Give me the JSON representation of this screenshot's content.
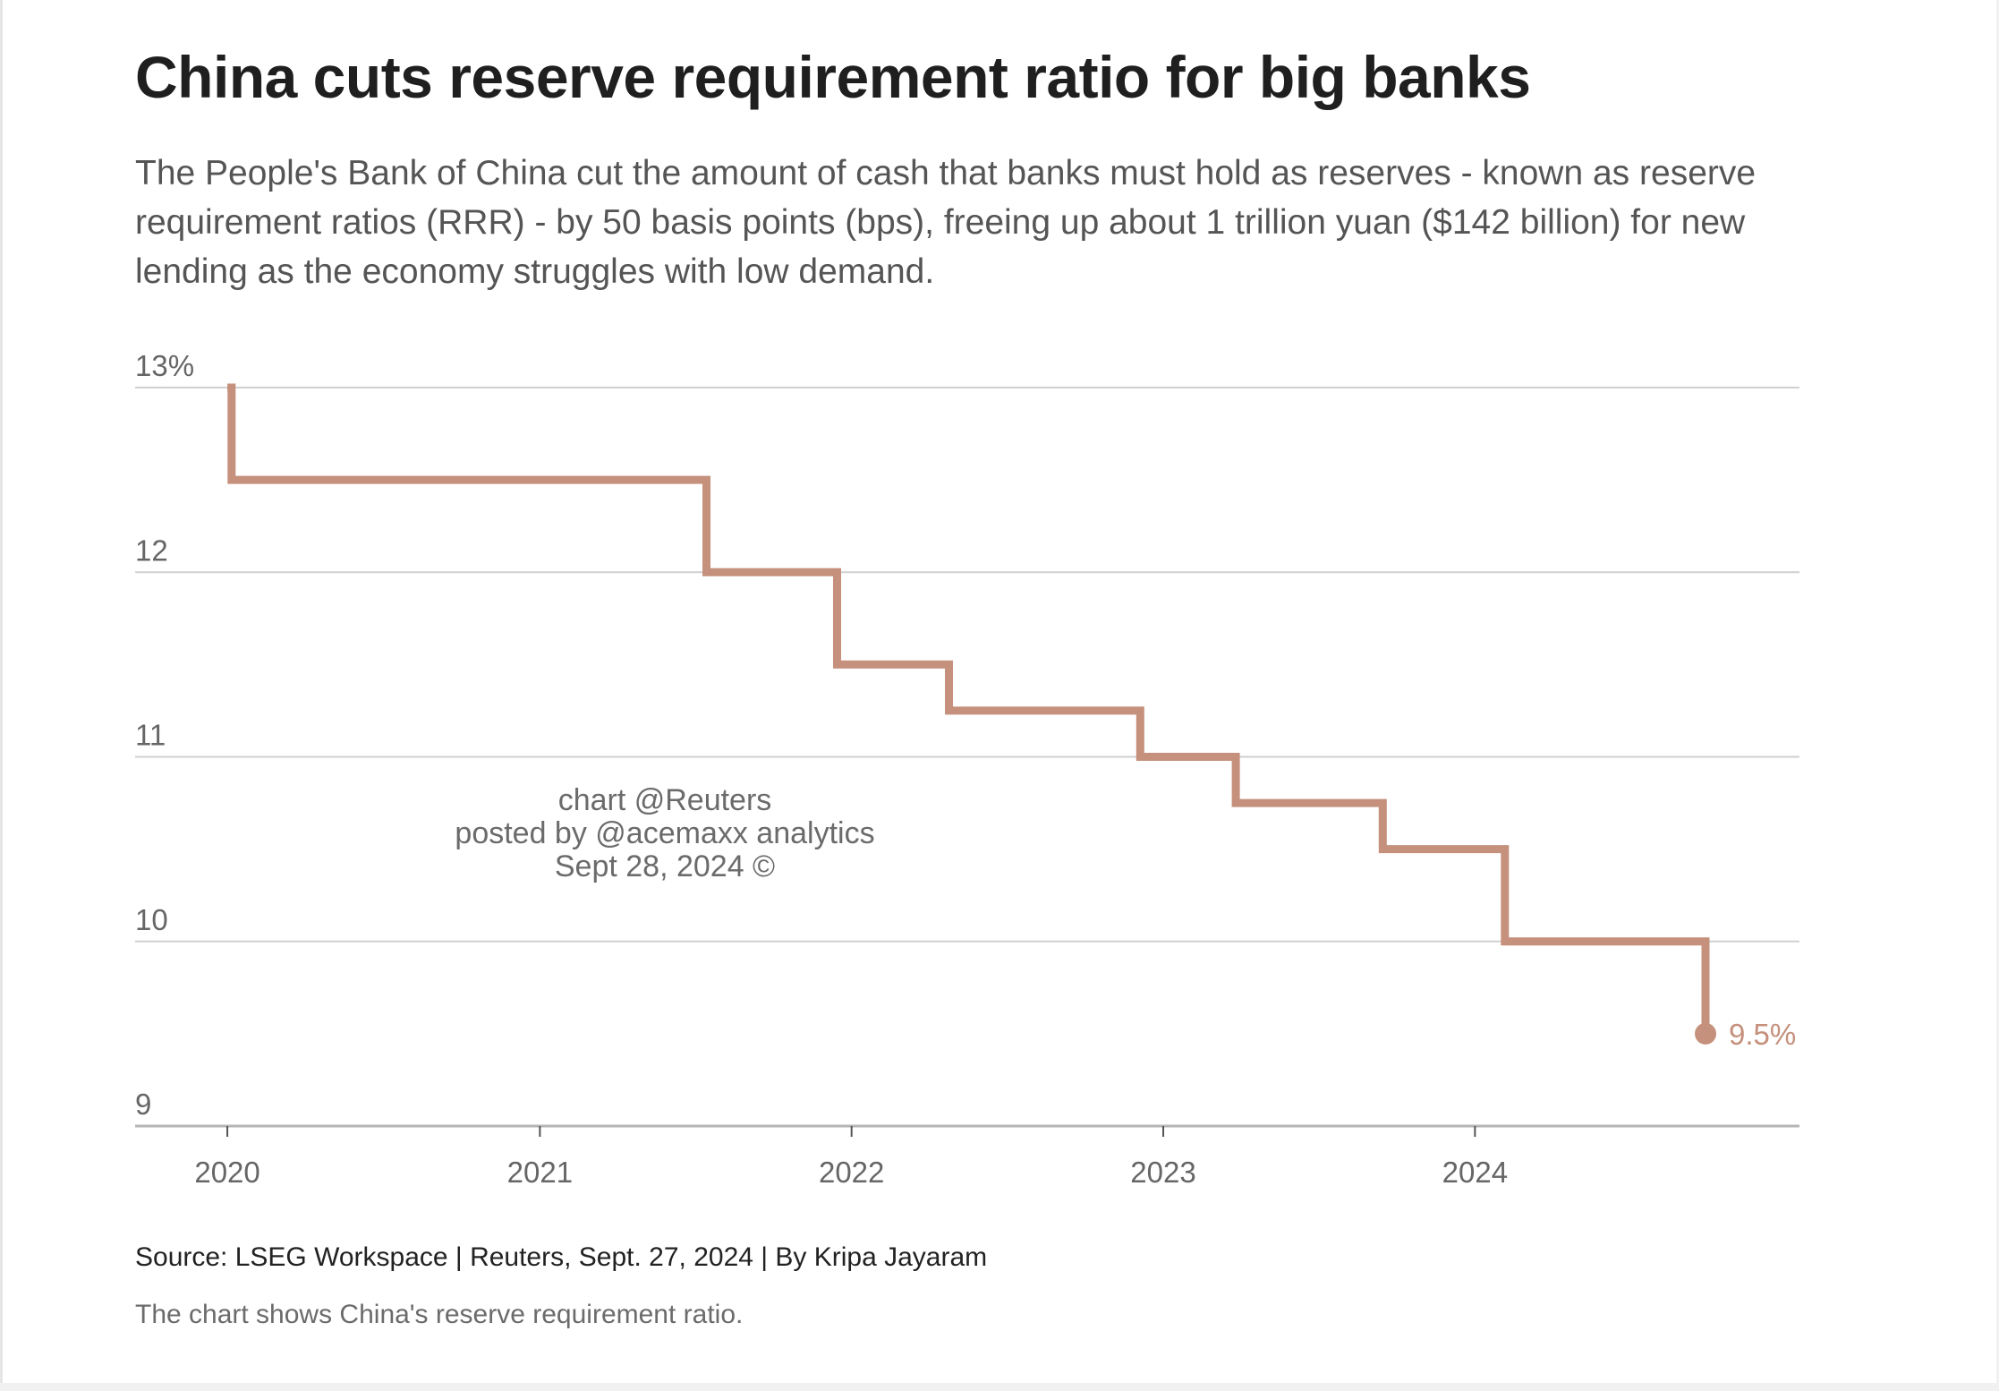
{
  "title": "China cuts reserve requirement ratio for big banks",
  "subtitle": "The People's Bank of China cut the amount of cash that banks must hold as reserves - known as reserve requirement ratios (RRR) - by 50 basis points (bps), freeing up about 1 trillion yuan ($142 billion) for new lending as the economy struggles with low demand.",
  "watermark": [
    "chart @Reuters",
    "posted by @acemaxx analytics",
    "Sept 28, 2024 ©"
  ],
  "source": "Source: LSEG Workspace | Reuters, Sept. 27, 2024 | By Kripa Jayaram",
  "note": "The chart shows China's reserve requirement ratio.",
  "colors": {
    "line": "#c5907c",
    "grid": "#d0d0d0",
    "axis": "#b5b5b5"
  },
  "chart_data": {
    "type": "line",
    "step": true,
    "series": [
      {
        "values": [
          {
            "x": "2020-01-01",
            "y": 13.0
          },
          {
            "x": "2020-01-06",
            "y": 12.5
          },
          {
            "x": "2021-07-15",
            "y": 12.0
          },
          {
            "x": "2021-12-15",
            "y": 11.5
          },
          {
            "x": "2022-04-25",
            "y": 11.25
          },
          {
            "x": "2022-12-05",
            "y": 11.0
          },
          {
            "x": "2023-03-27",
            "y": 10.75
          },
          {
            "x": "2023-09-15",
            "y": 10.5
          },
          {
            "x": "2024-02-05",
            "y": 10.0
          },
          {
            "x": "2024-09-27",
            "y": 9.5
          }
        ]
      }
    ],
    "end_label": "9.5%",
    "ylim": [
      9,
      13
    ],
    "xlim": [
      "2019-09-15",
      "2025-01-15"
    ],
    "yticks": [
      {
        "value": 13,
        "label": "13%"
      },
      {
        "value": 12,
        "label": "12"
      },
      {
        "value": 11,
        "label": "11"
      },
      {
        "value": 10,
        "label": "10"
      },
      {
        "value": 9,
        "label": "9"
      }
    ],
    "xticks": [
      {
        "value": "2020-01-01",
        "label": "2020"
      },
      {
        "value": "2021-01-01",
        "label": "2021"
      },
      {
        "value": "2022-01-01",
        "label": "2022"
      },
      {
        "value": "2023-01-01",
        "label": "2023"
      },
      {
        "value": "2024-01-01",
        "label": "2024"
      }
    ],
    "grid": true
  }
}
